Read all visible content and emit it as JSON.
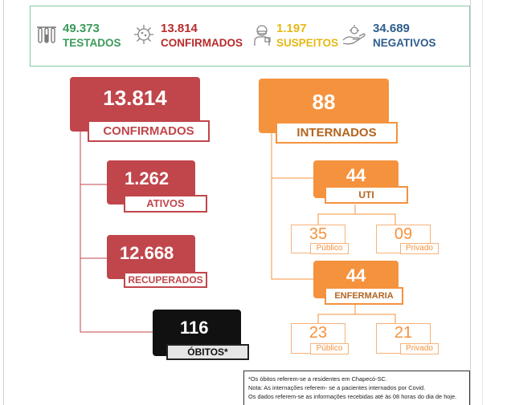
{
  "stats": {
    "tested": {
      "value": "49.373",
      "label": "TESTADOS"
    },
    "confirmed": {
      "value": "13.814",
      "label": "CONFIRMADOS"
    },
    "suspected": {
      "value": "1.197",
      "label": "SUSPEITOS"
    },
    "negative": {
      "value": "34.689",
      "label": "NEGATIVOS"
    }
  },
  "confirmed": {
    "value": "13.814",
    "label": "CONFIRMADOS"
  },
  "active": {
    "value": "1.262",
    "label": "ATIVOS"
  },
  "recovered": {
    "value": "12.668",
    "label": "RECUPERADOS"
  },
  "deaths": {
    "value": "116",
    "label": "ÓBITOS*"
  },
  "hospitalized": {
    "value": "88",
    "label": "INTERNADOS"
  },
  "icu": {
    "value": "44",
    "label": "UTI",
    "public": {
      "value": "35",
      "label": "Público"
    },
    "private": {
      "value": "09",
      "label": "Privado"
    }
  },
  "ward": {
    "value": "44",
    "label": "ENFERMARIA",
    "public": {
      "value": "23",
      "label": "Público"
    },
    "private": {
      "value": "21",
      "label": "Privado"
    }
  },
  "notes": [
    "*Os óbitos referem-se a residentes em Chapecó-SC.",
    "Nota: As internações referem- se a pacientes internados por Covid.",
    "Os dados referem-se as informações recebidas até às 08 horas do dia de hoje."
  ],
  "colors": {
    "red": "#c0464b",
    "orange": "#f5923e",
    "green": "#3a9a58",
    "blue": "#2e5d8c",
    "yellow": "#e6b816"
  }
}
